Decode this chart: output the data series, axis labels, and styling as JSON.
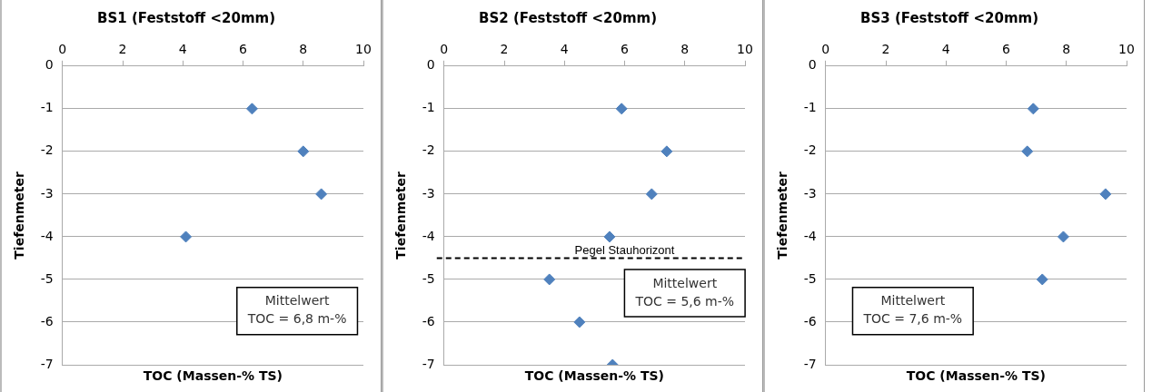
{
  "chart_data": [
    {
      "type": "scatter",
      "title": "BS1 (Feststoff <20mm)",
      "xlabel": "TOC (Massen-% TS)",
      "ylabel": "Tiefenmeter",
      "xlim": [
        0,
        10
      ],
      "xticks": [
        0,
        2,
        4,
        6,
        8,
        10
      ],
      "ylim": [
        -7,
        0
      ],
      "yticks": [
        0,
        -1,
        -2,
        -3,
        -4,
        -5,
        -6,
        -7
      ],
      "grid": "y",
      "marker": "diamond",
      "legend": false,
      "series": [
        {
          "color": "#4f81bd",
          "x": [
            6.3,
            8.0,
            8.6,
            4.1
          ],
          "values": [
            -1,
            -2,
            -3,
            -4
          ]
        }
      ],
      "annotations": [
        "Mittelwert\nTOC = 6,8 m-%"
      ]
    },
    {
      "type": "scatter",
      "title": "BS2 (Feststoff <20mm)",
      "xlabel": "TOC (Massen-% TS)",
      "ylabel": "Tiefenmeter",
      "xlim": [
        0,
        10
      ],
      "xticks": [
        0,
        2,
        4,
        6,
        8,
        10
      ],
      "ylim": [
        -7,
        0
      ],
      "yticks": [
        0,
        -1,
        -2,
        -3,
        -4,
        -5,
        -6,
        -7
      ],
      "grid": "y",
      "marker": "diamond",
      "legend": false,
      "series": [
        {
          "color": "#4f81bd",
          "x": [
            5.9,
            7.4,
            6.9,
            5.5,
            3.5,
            4.5,
            5.6
          ],
          "values": [
            -1,
            -2,
            -3,
            -4,
            -5,
            -6,
            -7
          ]
        }
      ],
      "ref_lines": [
        {
          "axis": "y",
          "value": -4.5,
          "label": "Pegel Stauhorizont",
          "color": "#000000",
          "line_style": "dashed"
        }
      ],
      "annotations": [
        "Mittelwert\nTOC = 5,6 m-%"
      ]
    },
    {
      "type": "scatter",
      "title": "BS3 (Feststoff <20mm)",
      "xlabel": "TOC (Massen-% TS)",
      "ylabel": "Tiefenmeter",
      "xlim": [
        0,
        10
      ],
      "xticks": [
        0,
        2,
        4,
        6,
        8,
        10
      ],
      "ylim": [
        -7,
        0
      ],
      "yticks": [
        0,
        -1,
        -2,
        -3,
        -4,
        -5,
        -6,
        -7
      ],
      "grid": "y",
      "marker": "diamond",
      "legend": false,
      "series": [
        {
          "color": "#4f81bd",
          "x": [
            6.9,
            6.7,
            9.3,
            7.9,
            7.2
          ],
          "values": [
            -1,
            -2,
            -3,
            -4,
            -5
          ]
        }
      ],
      "annotations": [
        "Mittelwert\nTOC = 7,6 m-%"
      ]
    }
  ]
}
